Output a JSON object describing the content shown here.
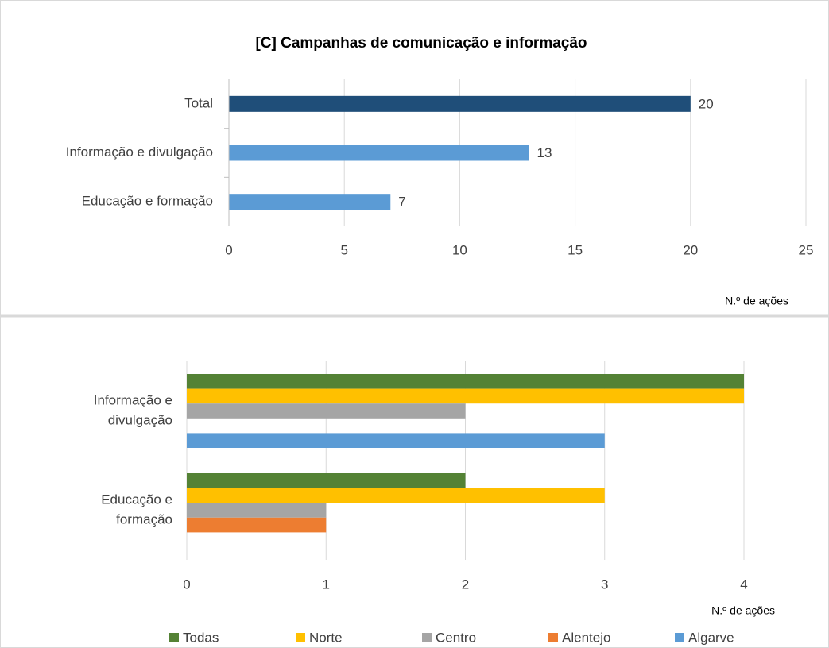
{
  "chart_data": [
    {
      "type": "bar",
      "orientation": "horizontal",
      "title": "[C] Campanhas de comunicação e informação",
      "categories": [
        "Total",
        "Informação e divulgação",
        "Educação e formação"
      ],
      "values": [
        20,
        13,
        7
      ],
      "colors": [
        "#1f4e79",
        "#5b9bd5",
        "#5b9bd5"
      ],
      "xlim": [
        0,
        25
      ],
      "xticks": [
        0,
        5,
        10,
        15,
        20,
        25
      ],
      "x_label": "N.º de ações",
      "grid": true
    },
    {
      "type": "grouped_bar",
      "orientation": "horizontal",
      "categories": [
        "Informação e divulgação",
        "Educação e formação"
      ],
      "series": [
        {
          "name": "Todas",
          "color": "#548235",
          "values": [
            4,
            2
          ]
        },
        {
          "name": "Norte",
          "color": "#ffc000",
          "values": [
            4,
            3
          ]
        },
        {
          "name": "Centro",
          "color": "#a5a5a5",
          "values": [
            2,
            1
          ]
        },
        {
          "name": "Alentejo",
          "color": "#ed7d31",
          "values": [
            0,
            1
          ]
        },
        {
          "name": "Algarve",
          "color": "#5b9bd5",
          "values": [
            3,
            0
          ]
        }
      ],
      "xlim": [
        0,
        4
      ],
      "xticks": [
        0,
        1,
        2,
        3,
        4
      ],
      "x_label": "N.º de ações",
      "grid": true,
      "legend": "bottom"
    }
  ]
}
